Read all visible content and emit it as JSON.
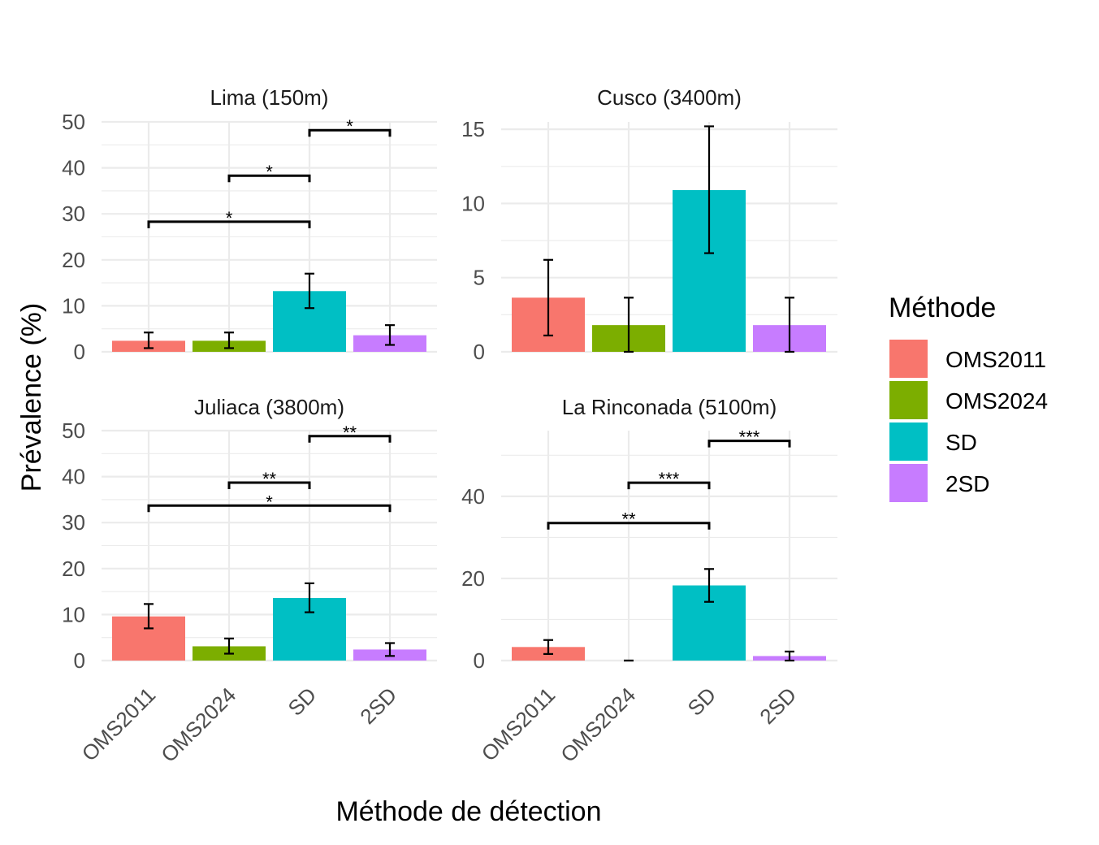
{
  "chart_data": {
    "type": "bar",
    "xlabel": "Méthode de détection",
    "ylabel": "Prévalence (%)",
    "categories": [
      "OMS2011",
      "OMS2024",
      "SD",
      "2SD"
    ],
    "legend": {
      "title": "Méthode",
      "position": "right",
      "entries": [
        {
          "label": "OMS2011",
          "color": "#F8766D"
        },
        {
          "label": "OMS2024",
          "color": "#7CAE00"
        },
        {
          "label": "SD",
          "color": "#00BFC4"
        },
        {
          "label": "2SD",
          "color": "#C77CFF"
        }
      ]
    },
    "grid": true,
    "panels": [
      {
        "title": "Lima (150m)",
        "ylim": [
          0,
          50
        ],
        "yticks": [
          "0",
          "10",
          "20",
          "30",
          "40",
          "50"
        ],
        "values": [
          2.4,
          2.4,
          13.2,
          3.6
        ],
        "error_low": [
          0.8,
          0.8,
          9.5,
          1.5
        ],
        "error_high": [
          4.2,
          4.2,
          17.0,
          5.8
        ],
        "significance": [
          {
            "from": "OMS2011",
            "to": "SD",
            "y": 28.3,
            "label": "*"
          },
          {
            "from": "OMS2024",
            "to": "SD",
            "y": 38.3,
            "label": "*"
          },
          {
            "from": "SD",
            "to": "2SD",
            "y": 48.2,
            "label": "*"
          }
        ]
      },
      {
        "title": "Cusco (3400m)",
        "ylim": [
          0,
          15.5
        ],
        "yticks": [
          "0",
          "5",
          "10",
          "15"
        ],
        "values": [
          3.65,
          1.8,
          10.9,
          1.8
        ],
        "error_low": [
          1.1,
          0.0,
          6.65,
          0.0
        ],
        "error_high": [
          6.2,
          3.65,
          15.2,
          3.65
        ],
        "significance": []
      },
      {
        "title": "Juliaca (3800m)",
        "ylim": [
          0,
          50
        ],
        "yticks": [
          "0",
          "10",
          "20",
          "30",
          "40",
          "50"
        ],
        "values": [
          9.6,
          3.1,
          13.6,
          2.4
        ],
        "error_low": [
          7.0,
          1.5,
          10.5,
          1.0
        ],
        "error_high": [
          12.3,
          4.8,
          16.8,
          3.8
        ],
        "significance": [
          {
            "from": "OMS2011",
            "to": "2SD",
            "y": 33.7,
            "label": "*"
          },
          {
            "from": "OMS2024",
            "to": "SD",
            "y": 38.7,
            "label": "**"
          },
          {
            "from": "SD",
            "to": "2SD",
            "y": 48.8,
            "label": "**"
          }
        ]
      },
      {
        "title": "La Rinconada (5100m)",
        "ylim": [
          0,
          56
        ],
        "yticks": [
          "0",
          "20",
          "40"
        ],
        "values": [
          3.3,
          0.0,
          18.3,
          1.1
        ],
        "error_low": [
          1.6,
          0.0,
          14.3,
          0.0
        ],
        "error_high": [
          5.0,
          0.0,
          22.3,
          2.2
        ],
        "significance": [
          {
            "from": "OMS2011",
            "to": "SD",
            "y": 33.5,
            "label": "**"
          },
          {
            "from": "OMS2024",
            "to": "SD",
            "y": 43.3,
            "label": "***"
          },
          {
            "from": "SD",
            "to": "2SD",
            "y": 53.5,
            "label": "***"
          }
        ]
      }
    ]
  }
}
